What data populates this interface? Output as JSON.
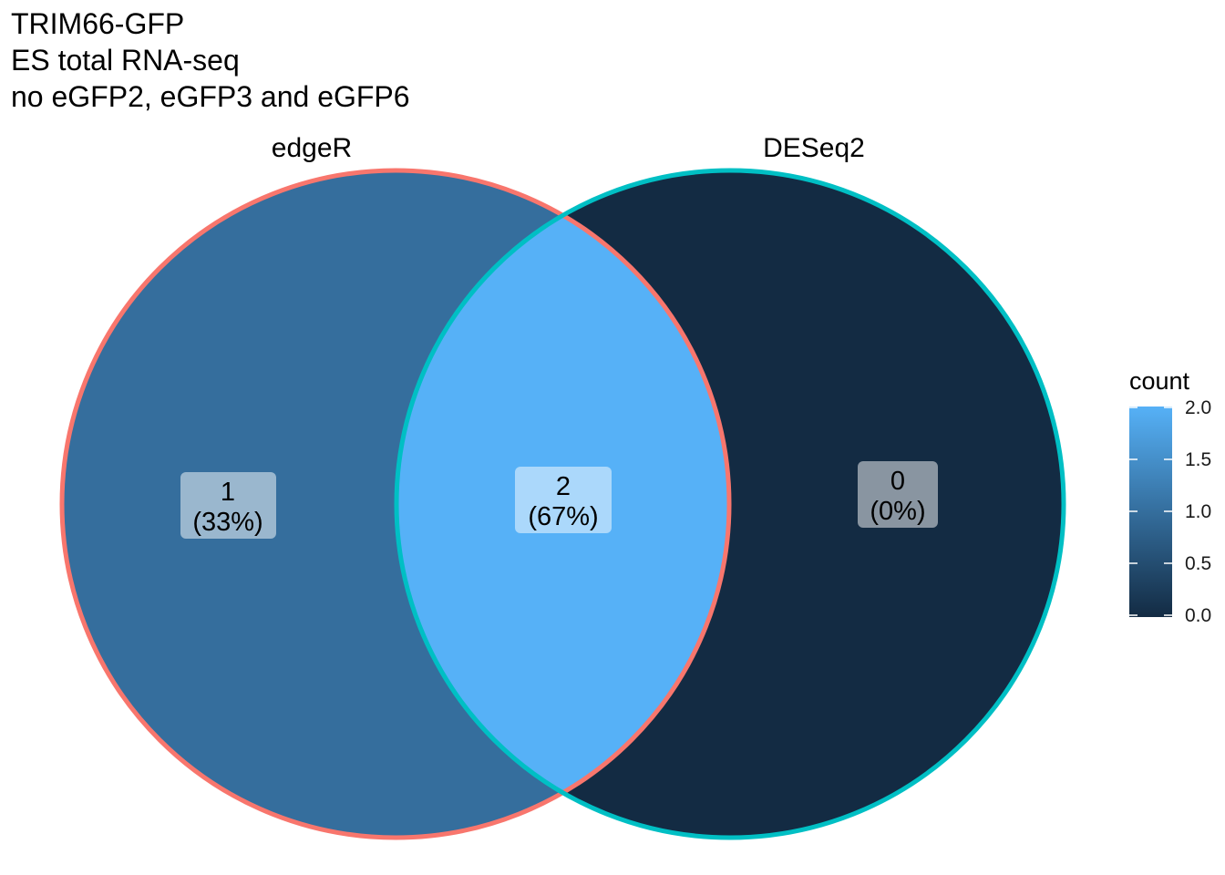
{
  "title": {
    "lines": [
      "TRIM66-GFP",
      "ES total RNA-seq",
      "no eGFP2, eGFP3 and eGFP6"
    ]
  },
  "sets": [
    {
      "name": "edgeR",
      "border_color": "#F8766D"
    },
    {
      "name": "DESeq2",
      "border_color": "#00BFC4"
    }
  ],
  "regions": [
    {
      "id": "edgeR-only",
      "count": "1",
      "percent": "(33%)",
      "value": 1
    },
    {
      "id": "both",
      "count": "2",
      "percent": "(67%)",
      "value": 2
    },
    {
      "id": "DESeq2-only",
      "count": "0",
      "percent": "(0%)",
      "value": 0
    }
  ],
  "legend": {
    "title": "count",
    "ticks": [
      "2.0",
      "1.5",
      "1.0",
      "0.5",
      "0.0"
    ],
    "range": [
      0,
      2
    ],
    "color_low": "#132B43",
    "color_high": "#56B1F7"
  }
}
